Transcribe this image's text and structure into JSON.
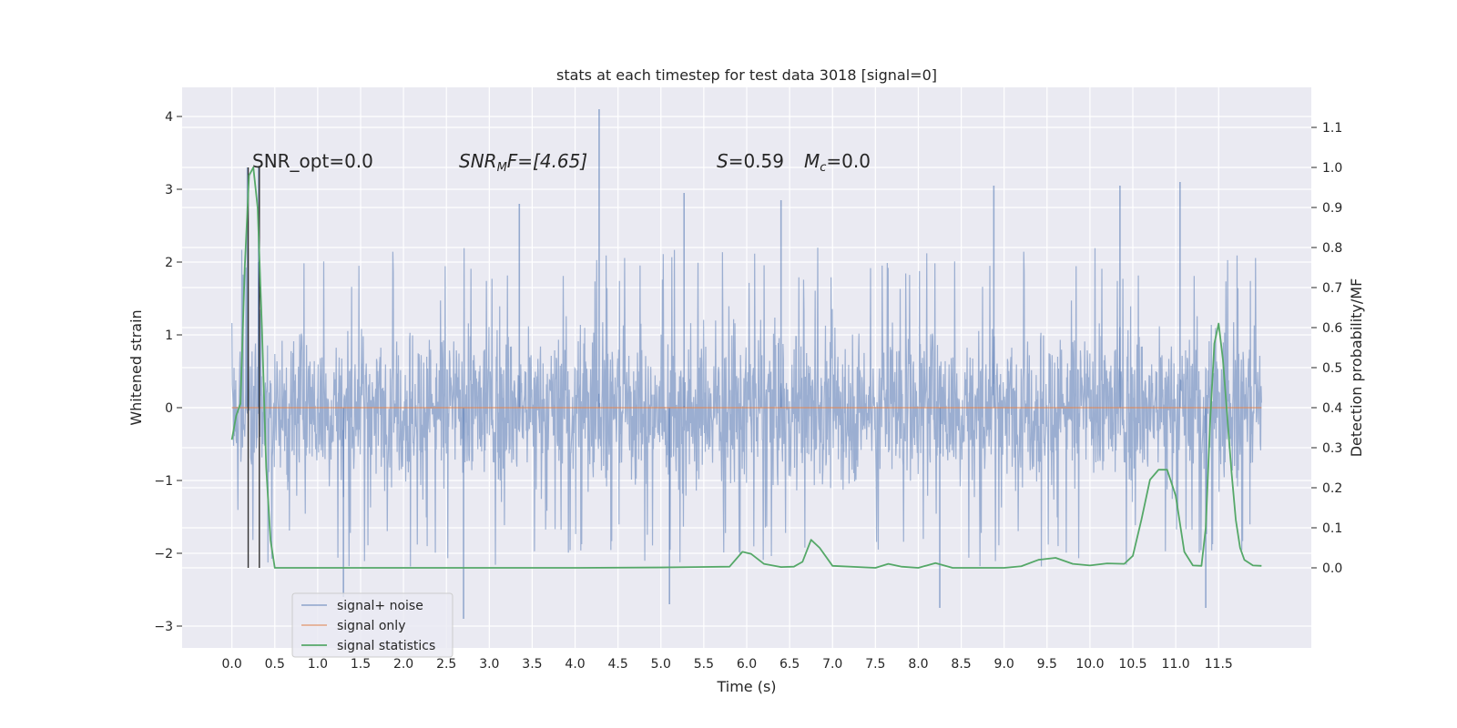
{
  "chart_data": {
    "type": "line",
    "title": "stats at each timestep for test data 3018 [signal=0]",
    "xlabel": "Time (s)",
    "ylabel": "Whitened strain",
    "ylabel_right": "Detection probability/MF",
    "xlim": [
      -0.58,
      12.58
    ],
    "ylim": [
      -3.3,
      4.4
    ],
    "ylim_right": [
      -0.2,
      1.2
    ],
    "x_ticks": [
      "0.0",
      "0.5",
      "1.0",
      "1.5",
      "2.0",
      "2.5",
      "3.0",
      "3.5",
      "4.0",
      "4.5",
      "5.0",
      "5.5",
      "6.0",
      "6.5",
      "7.0",
      "7.5",
      "8.0",
      "8.5",
      "9.0",
      "9.5",
      "10.0",
      "10.5",
      "11.0",
      "11.5"
    ],
    "y_ticks": [
      "−3",
      "−2",
      "−1",
      "0",
      "1",
      "2",
      "3",
      "4"
    ],
    "y_ticks_right": [
      "0.0",
      "0.1",
      "0.2",
      "0.3",
      "0.4",
      "0.5",
      "0.6",
      "0.7",
      "0.8",
      "0.9",
      "1.0",
      "1.1"
    ],
    "grid": true,
    "legend_placement": "lower-left",
    "colors": {
      "background": "#eaeaf2",
      "grid": "#ffffff",
      "noise": "#4c72b0",
      "signal": "#dd8452",
      "stats": "#55a868",
      "vline": "#333333"
    },
    "series": [
      {
        "name": "signal+ noise",
        "axis": "left",
        "envelope_note": "dense noise trace sampled over t = 0.0–12.0 s",
        "x_range": [
          0.0,
          12.0
        ],
        "typical_range": [
          -2.0,
          2.2
        ],
        "peaks": [
          {
            "x": 4.28,
            "y": 4.1
          },
          {
            "x": 0.18,
            "y": 3.3
          },
          {
            "x": 0.31,
            "y": 3.3
          },
          {
            "x": 11.05,
            "y": 3.1
          },
          {
            "x": 8.88,
            "y": 3.05
          },
          {
            "x": 10.35,
            "y": 3.05
          },
          {
            "x": 5.27,
            "y": 2.95
          },
          {
            "x": 6.4,
            "y": 2.85
          },
          {
            "x": 3.35,
            "y": 2.8
          },
          {
            "x": 2.7,
            "y": -2.9
          },
          {
            "x": 8.25,
            "y": -2.75
          },
          {
            "x": 11.35,
            "y": -2.75
          },
          {
            "x": 5.1,
            "y": -2.7
          },
          {
            "x": 1.3,
            "y": -2.6
          }
        ]
      },
      {
        "name": "signal only",
        "axis": "left",
        "x": [
          0.0,
          12.0
        ],
        "y": [
          0.0,
          0.0
        ]
      },
      {
        "name": "signal statistics",
        "axis": "right",
        "x": [
          0.0,
          0.05,
          0.1,
          0.15,
          0.2,
          0.25,
          0.3,
          0.35,
          0.4,
          0.45,
          0.5,
          0.55,
          1.0,
          2.0,
          3.0,
          4.0,
          5.0,
          5.4,
          5.8,
          5.95,
          6.05,
          6.2,
          6.4,
          6.55,
          6.65,
          6.75,
          6.85,
          7.0,
          7.5,
          7.65,
          7.8,
          8.0,
          8.2,
          8.4,
          9.0,
          9.2,
          9.4,
          9.6,
          9.8,
          10.0,
          10.2,
          10.4,
          10.5,
          10.6,
          10.7,
          10.8,
          10.9,
          11.0,
          11.1,
          11.2,
          11.3,
          11.35,
          11.4,
          11.45,
          11.5,
          11.55,
          11.6,
          11.65,
          11.7,
          11.75,
          11.8,
          11.9,
          12.0
        ],
        "y": [
          0.32,
          0.38,
          0.41,
          0.75,
          0.98,
          1.0,
          0.9,
          0.6,
          0.25,
          0.07,
          0.0,
          0.0,
          0.0,
          0.0,
          0.0,
          0.0,
          0.001,
          0.002,
          0.003,
          0.04,
          0.035,
          0.01,
          0.002,
          0.003,
          0.015,
          0.07,
          0.05,
          0.005,
          0.0,
          0.01,
          0.003,
          0.0,
          0.012,
          0.0,
          0.0,
          0.004,
          0.02,
          0.025,
          0.01,
          0.006,
          0.011,
          0.01,
          0.03,
          0.12,
          0.22,
          0.245,
          0.245,
          0.18,
          0.04,
          0.006,
          0.005,
          0.1,
          0.36,
          0.56,
          0.61,
          0.52,
          0.38,
          0.24,
          0.12,
          0.05,
          0.02,
          0.006,
          0.005
        ]
      }
    ],
    "vlines": [
      {
        "x": 0.19,
        "y_top": 3.3
      },
      {
        "x": 0.32,
        "y_top": 3.3
      }
    ],
    "annotations": [
      {
        "text": "SNR_opt=0.0",
        "x": 0.2,
        "y": 3.28
      },
      {
        "text": "SNR_MF=[4.65]",
        "x": 2.6,
        "y": 3.28
      },
      {
        "text": "S=0.59   M_c=0.0",
        "x": 5.6,
        "y": 3.28
      }
    ],
    "annotation_text": {
      "snr_opt": "SNR_opt=0.0",
      "snr_mf_base": "SNR",
      "snr_mf_sub": "M",
      "snr_mf_rest": "F=[4.65]",
      "s_label": "S",
      "s_value": "=0.59",
      "mc_base": "M",
      "mc_sub": "c",
      "mc_value": "=0.0"
    }
  }
}
